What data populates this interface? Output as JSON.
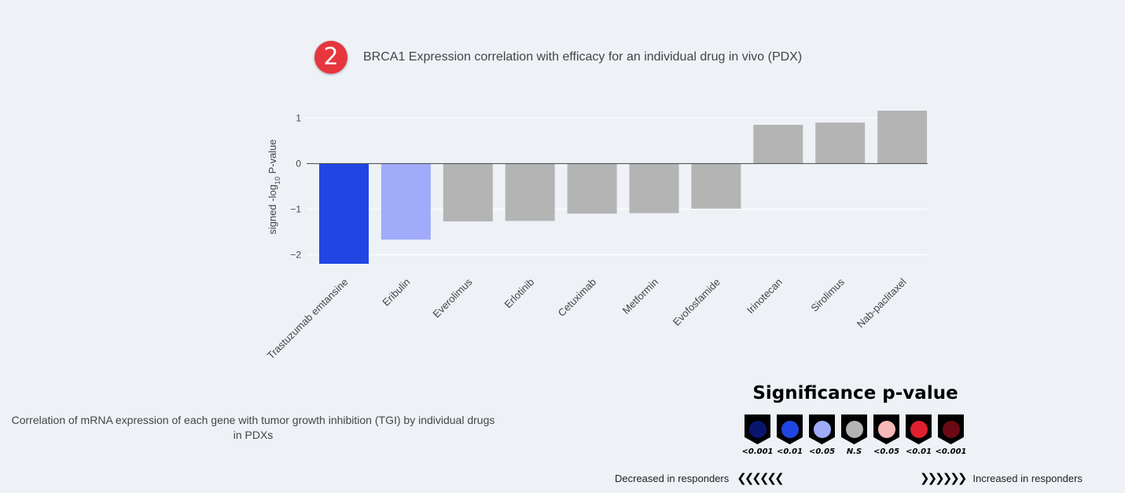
{
  "header": {
    "step_number": "2",
    "title": "BRCA1 Expression correlation with efficacy for an individual drug in vivo (PDX)"
  },
  "chart_data": {
    "type": "bar",
    "categories": [
      "Trastuzumab emtansine",
      "Eribulin",
      "Everolimus",
      "Erlotinib",
      "Cetuximab",
      "Metformin",
      "Evofosfamide",
      "Irinotecan",
      "Sirolimus",
      "Nab-paclitaxel"
    ],
    "values": [
      -2.2,
      -1.67,
      -1.27,
      -1.26,
      -1.1,
      -1.09,
      -0.99,
      0.85,
      0.9,
      1.16
    ],
    "colors": [
      "#1f46e3",
      "#a0acfa",
      "#b4b4b4",
      "#b4b4b4",
      "#b4b4b4",
      "#b4b4b4",
      "#b4b4b4",
      "#b4b4b4",
      "#b4b4b4",
      "#b4b4b4"
    ],
    "ylabel_prefix": "signed -log",
    "ylabel_sub": "10",
    "ylabel_suffix": " P-value",
    "ylim": [
      -2.2,
      1.16
    ],
    "yticks": [
      1,
      0,
      -1,
      -2
    ],
    "ytick_labels": [
      "1",
      "0",
      "−1",
      "−2"
    ]
  },
  "caption": "Correlation of mRNA expression of each gene with tumor growth inhibition (TGI) by individual drugs in PDXs",
  "legend": {
    "title": "Significance p-value",
    "items": [
      {
        "label": "<0.001",
        "color": "#0a1570"
      },
      {
        "label": "<0.01",
        "color": "#1f46e3"
      },
      {
        "label": "<0.05",
        "color": "#a0acfa"
      },
      {
        "label": "N.S",
        "color": "#b4b4b4"
      },
      {
        "label": "<0.05",
        "color": "#f7b8b8"
      },
      {
        "label": "<0.01",
        "color": "#e02030"
      },
      {
        "label": "<0.001",
        "color": "#6b0a14"
      }
    ],
    "decreased_label": "Decreased in responders",
    "decreased_arrows": "❮❮❮❮❮❮",
    "increased_arrows": "❯❯❯❯❯❯",
    "increased_label": "Increased in responders"
  }
}
